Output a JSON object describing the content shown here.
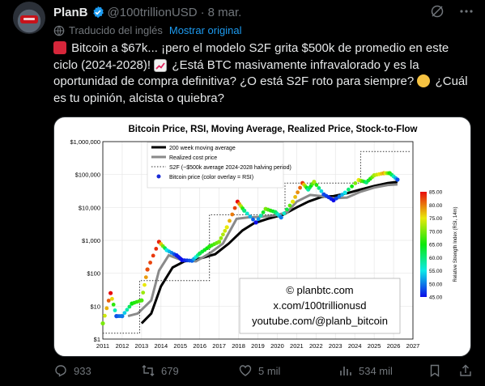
{
  "author": {
    "name": "PlanB",
    "handle": "@100trillionUSD",
    "date": "8 mar."
  },
  "translation": {
    "label": "Traducido del inglés",
    "link": "Mostrar original"
  },
  "tweet": {
    "part1": "Bitcoin a $67k... ¡pero el modelo S2F grita $500k de promedio en este ciclo (2024-2028)!",
    "part2": "¿Está BTC masivamente infravalorado y es la oportunidad de compra definitiva? ¿O está S2F roto para siempre?",
    "part3": "¿Cuál es tu opinión, alcista o quiebra?"
  },
  "actions": {
    "replies": "933",
    "reposts": "679",
    "likes": "5 mil",
    "views": "534 mil"
  },
  "chart_data": {
    "type": "line",
    "title": "Bitcoin Price, RSI, Moving Average, Realized Price, Stock-to-Flow",
    "y_scale": "log",
    "ylim": [
      1,
      1000000
    ],
    "xlim": [
      2011,
      2027
    ],
    "x_ticks": [
      "2011",
      "2012",
      "2013",
      "2014",
      "2015",
      "2016",
      "2017",
      "2018",
      "2019",
      "2020",
      "2021",
      "2022",
      "2023",
      "2024",
      "2025",
      "2026",
      "2027"
    ],
    "y_ticks": [
      "$1",
      "$10",
      "$100",
      "$1,000",
      "$10,000",
      "$100,000",
      "$1,000,000"
    ],
    "legend": [
      "200 week moving average",
      "Realized cost price",
      "S2F (~$500k average 2024-2028 halving period)",
      "Bitcoin price (color overlay = RSI)"
    ],
    "colorbar": {
      "label": "Relative Strength Index (RSI, 14m)",
      "ticks": [
        "85.00",
        "80.00",
        "75.00",
        "70.00",
        "65.00",
        "60.00",
        "55.00",
        "50.00",
        "45.00"
      ]
    },
    "watermark": [
      "© planbtc.com",
      "x.com/100trillionusd",
      "youtube.com/@planb_bitcoin"
    ],
    "series": [
      {
        "name": "200 week moving average",
        "color": "#000000",
        "x": [
          2013.0,
          2013.5,
          2014.0,
          2014.6,
          2015.2,
          2016.0,
          2016.8,
          2017.5,
          2018.2,
          2018.8,
          2019.5,
          2020.3,
          2021.0,
          2021.6,
          2022.3,
          2022.9,
          2023.6,
          2024.3,
          2025.0,
          2025.7,
          2026.2
        ],
        "y": [
          3,
          6,
          40,
          150,
          230,
          280,
          380,
          800,
          2000,
          3300,
          4500,
          6000,
          10000,
          15000,
          21000,
          22000,
          27000,
          35000,
          45000,
          55000,
          60000
        ]
      },
      {
        "name": "Realized cost price",
        "color": "#888888",
        "x": [
          2012.3,
          2012.8,
          2013.5,
          2013.9,
          2014.4,
          2015.0,
          2015.8,
          2016.5,
          2017.2,
          2017.9,
          2018.5,
          2019.2,
          2019.9,
          2020.5,
          2021.0,
          2021.7,
          2022.3,
          2022.9,
          2023.6,
          2024.3,
          2025.0,
          2025.7,
          2026.2
        ],
        "y": [
          5,
          6,
          15,
          120,
          350,
          260,
          230,
          400,
          800,
          4500,
          5000,
          5200,
          5800,
          7000,
          15000,
          24000,
          22000,
          19000,
          20000,
          30000,
          40000,
          48000,
          50000
        ]
      },
      {
        "name": "S2F (~$500k average 2024-2028 halving period)",
        "color": "#444444",
        "x": [
          2011.0,
          2012.9,
          2012.9,
          2016.5,
          2016.5,
          2020.4,
          2020.4,
          2024.3,
          2024.3,
          2026.9
        ],
        "y": [
          1.5,
          1.5,
          60,
          60,
          6000,
          6000,
          55000,
          55000,
          500000,
          500000
        ]
      },
      {
        "name": "Bitcoin price (color overlay = RSI)",
        "x": [
          2011.0,
          2011.4,
          2011.7,
          2012.0,
          2012.5,
          2013.0,
          2013.3,
          2013.9,
          2014.3,
          2014.8,
          2015.1,
          2015.6,
          2016.0,
          2016.5,
          2017.0,
          2017.4,
          2017.95,
          2018.3,
          2018.9,
          2019.4,
          2019.9,
          2020.2,
          2020.8,
          2021.3,
          2021.6,
          2021.9,
          2022.4,
          2022.9,
          2023.5,
          2024.2,
          2024.6,
          2025.0,
          2025.5,
          2025.8,
          2026.2
        ],
        "y": [
          3,
          25,
          5,
          5,
          12,
          15,
          130,
          900,
          500,
          350,
          250,
          240,
          400,
          650,
          900,
          2500,
          15000,
          8000,
          3500,
          9000,
          7200,
          5000,
          15000,
          55000,
          35000,
          60000,
          25000,
          16500,
          28000,
          68000,
          58000,
          95000,
          110000,
          110000,
          70000
        ],
        "rsi": [
          70,
          85,
          48,
          50,
          65,
          68,
          82,
          84,
          55,
          46,
          45,
          49,
          62,
          66,
          70,
          75,
          85,
          60,
          45,
          70,
          62,
          50,
          75,
          83,
          58,
          72,
          48,
          45,
          55,
          75,
          60,
          72,
          78,
          66,
          48
        ]
      }
    ]
  }
}
